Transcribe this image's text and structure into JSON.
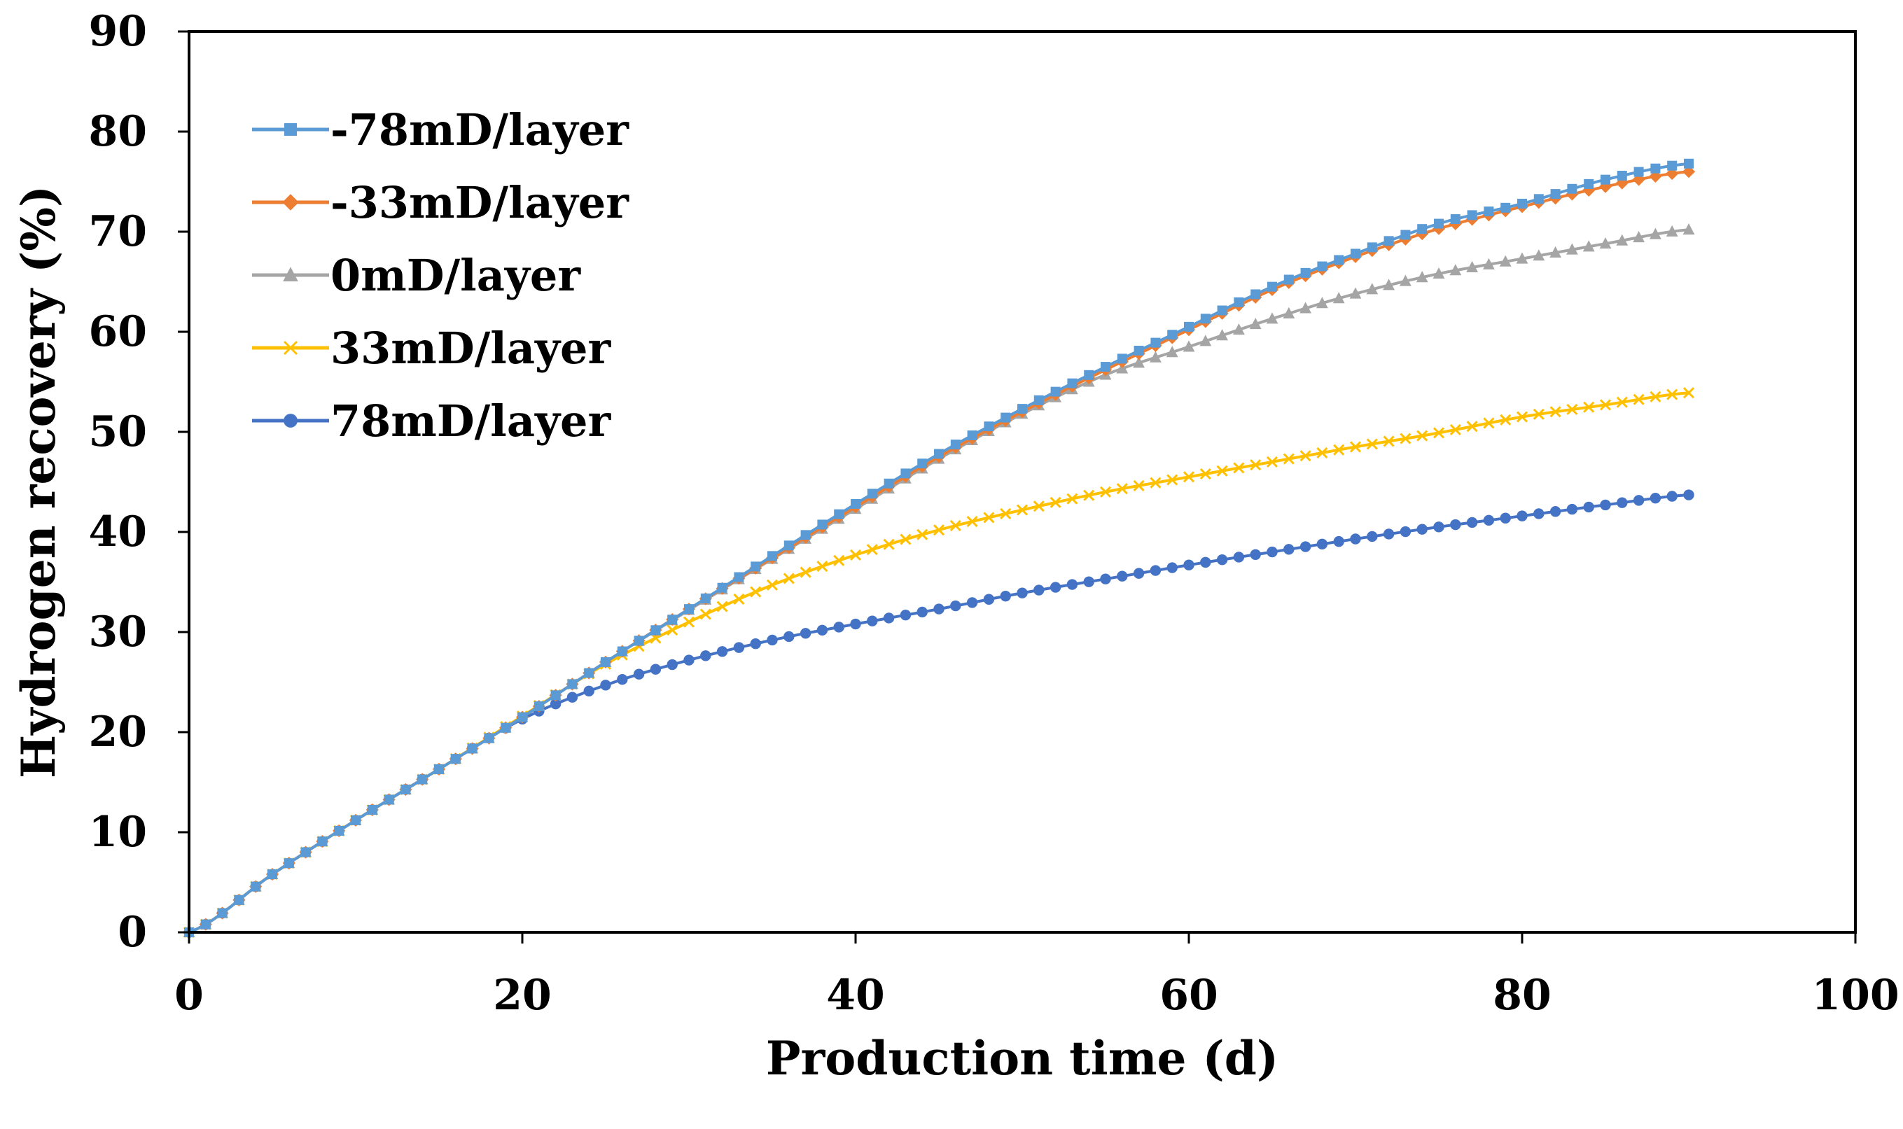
{
  "chart_data": {
    "type": "line",
    "xlabel": "Production time (d)",
    "ylabel": "Hydrogen recovery (%)",
    "xlim": [
      0,
      100
    ],
    "ylim": [
      0,
      90
    ],
    "xticks": [
      "0",
      "20",
      "40",
      "60",
      "80",
      "100"
    ],
    "yticks": [
      "0",
      "10",
      "20",
      "30",
      "40",
      "50",
      "60",
      "70",
      "80",
      "90"
    ],
    "grid": false,
    "legend_position": "top-left",
    "x": [
      0,
      5,
      10,
      15,
      20,
      25,
      30,
      35,
      40,
      45,
      50,
      55,
      60,
      65,
      70,
      75,
      80,
      85,
      90
    ],
    "series": [
      {
        "name": "-78mD/layer",
        "color": "#5B9BD5",
        "marker": "square",
        "values": [
          0,
          5.8,
          11.2,
          16.3,
          21.5,
          27.0,
          32.3,
          37.6,
          42.8,
          47.8,
          52.3,
          56.5,
          60.5,
          64.5,
          67.8,
          70.8,
          72.8,
          75.2,
          76.8
        ]
      },
      {
        "name": "-33mD/layer",
        "color": "#ED7D31",
        "marker": "diamond",
        "values": [
          0,
          5.8,
          11.2,
          16.3,
          21.5,
          27.0,
          32.3,
          37.4,
          42.5,
          47.5,
          52.0,
          56.2,
          60.2,
          64.2,
          67.5,
          70.3,
          72.5,
          74.5,
          76.0
        ]
      },
      {
        "name": "0mD/layer",
        "color": "#A5A5A5",
        "marker": "triangle",
        "values": [
          0,
          5.8,
          11.2,
          16.3,
          21.5,
          27.0,
          32.2,
          37.3,
          42.3,
          47.3,
          51.8,
          55.7,
          58.5,
          61.3,
          63.8,
          65.8,
          67.3,
          68.8,
          70.2
        ]
      },
      {
        "name": "33mD/layer",
        "color": "#FFC000",
        "marker": "x",
        "values": [
          0,
          5.8,
          11.2,
          16.3,
          21.6,
          26.8,
          31.0,
          34.7,
          37.7,
          40.2,
          42.2,
          44.0,
          45.5,
          47.0,
          48.5,
          49.9,
          51.5,
          52.7,
          53.9
        ]
      },
      {
        "name": "78mD/layer",
        "color": "#4472C4",
        "marker": "circle",
        "values": [
          0,
          5.8,
          11.2,
          16.3,
          21.3,
          24.7,
          27.2,
          29.2,
          30.8,
          32.3,
          33.9,
          35.3,
          36.7,
          38.0,
          39.3,
          40.5,
          41.6,
          42.7,
          43.7
        ]
      }
    ]
  }
}
